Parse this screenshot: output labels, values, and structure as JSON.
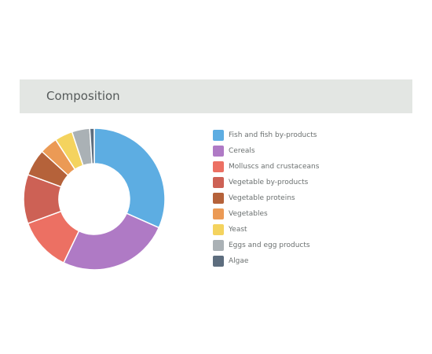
{
  "panel": {
    "title": "Composition"
  },
  "chart_data": {
    "type": "pie",
    "style": "donut",
    "title": "",
    "legend_position": "right",
    "categories": [
      "Fish and fish by-products",
      "Cereals",
      "Molluscs and crustaceans",
      "Vegetable by-products",
      "Vegetable proteins",
      "Vegetables",
      "Yeast",
      "Eggs and egg products",
      "Algae"
    ],
    "values": [
      31,
      25,
      12,
      11,
      6,
      4,
      4,
      4,
      1
    ],
    "colors": [
      "#5dade2",
      "#af7ac5",
      "#ec7063",
      "#cd6155",
      "#b5623a",
      "#eb9a55",
      "#f4d35e",
      "#aab1b5",
      "#5d6d7e"
    ]
  }
}
